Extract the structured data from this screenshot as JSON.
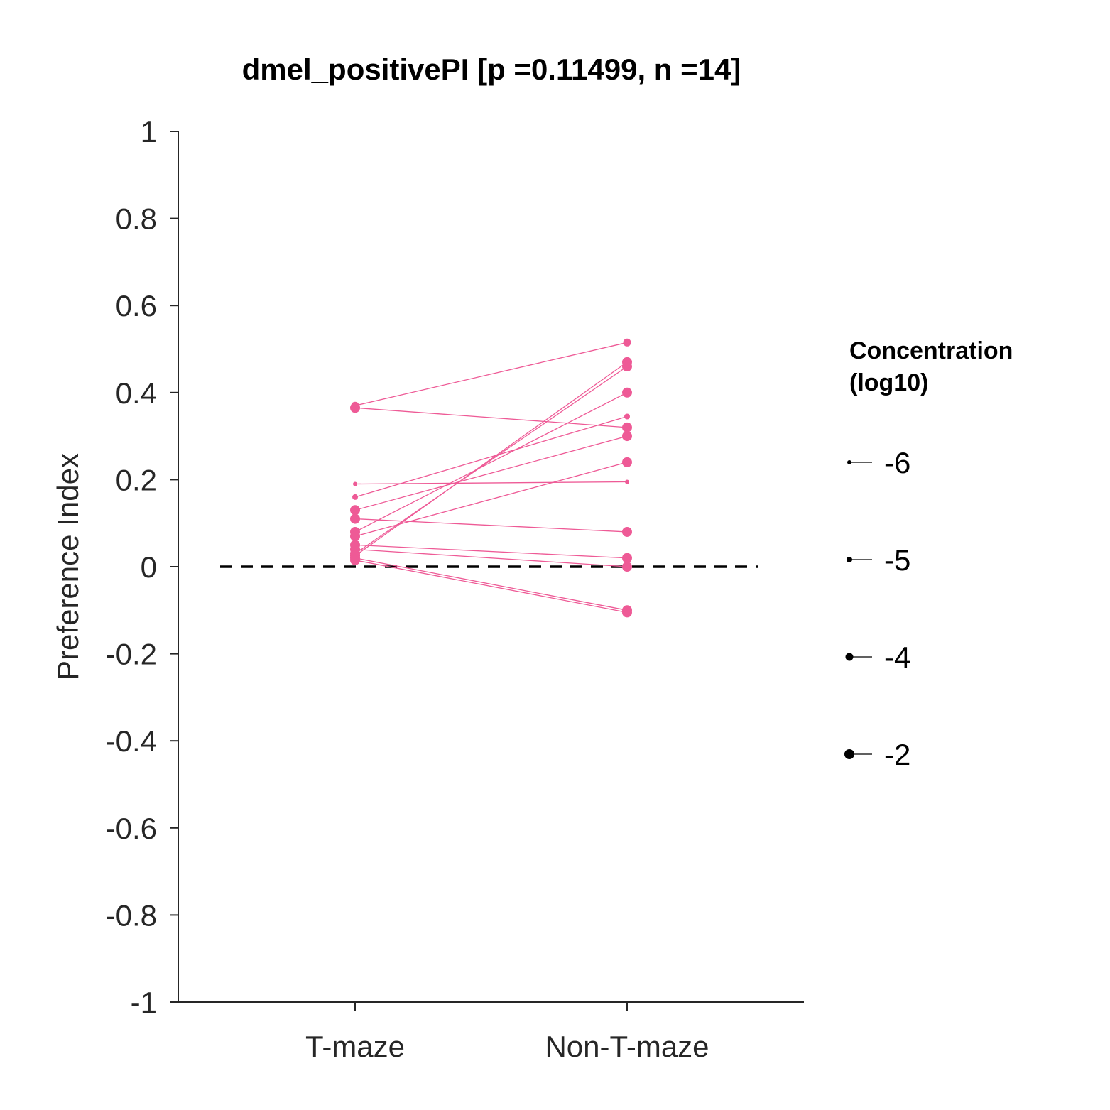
{
  "chart_data": {
    "type": "line",
    "title": "dmel_positivePI [p =0.11499, n =14]",
    "ylabel": "Preference Index",
    "xlabel": "",
    "categories": [
      "T-maze",
      "Non-T-maze"
    ],
    "ylim": [
      -1,
      1
    ],
    "yticks": [
      "1",
      "0.8",
      "0.6",
      "0.4",
      "0.2",
      "0",
      "-0.2",
      "-0.4",
      "-0.6",
      "-0.8",
      "-1"
    ],
    "ytick_values": [
      1,
      0.8,
      0.6,
      0.4,
      0.2,
      0,
      -0.2,
      -0.4,
      -0.6,
      -0.8,
      -1
    ],
    "reference_line": 0,
    "series_color": "#ee5a96",
    "axis_color": "#262626",
    "legend": {
      "title_line1": "Concentration",
      "title_line2": "(log10)",
      "placement": "right",
      "items": [
        {
          "label": "-6",
          "concentration": -6
        },
        {
          "label": "-5",
          "concentration": -5
        },
        {
          "label": "-4",
          "concentration": -4
        },
        {
          "label": "-2",
          "concentration": -2
        }
      ]
    },
    "pairs": [
      {
        "tmaze": 0.37,
        "nontmaze": 0.515,
        "concentration": -4
      },
      {
        "tmaze": 0.365,
        "nontmaze": 0.32,
        "concentration": -2
      },
      {
        "tmaze": 0.19,
        "nontmaze": 0.195,
        "concentration": -6
      },
      {
        "tmaze": 0.16,
        "nontmaze": 0.345,
        "concentration": -5
      },
      {
        "tmaze": 0.13,
        "nontmaze": 0.3,
        "concentration": -2
      },
      {
        "tmaze": 0.11,
        "nontmaze": 0.08,
        "concentration": -2
      },
      {
        "tmaze": 0.08,
        "nontmaze": 0.4,
        "concentration": -2
      },
      {
        "tmaze": 0.07,
        "nontmaze": 0.24,
        "concentration": -2
      },
      {
        "tmaze": 0.05,
        "nontmaze": 0.02,
        "concentration": -2
      },
      {
        "tmaze": 0.04,
        "nontmaze": 0.0,
        "concentration": -2
      },
      {
        "tmaze": 0.03,
        "nontmaze": 0.46,
        "concentration": -2
      },
      {
        "tmaze": 0.025,
        "nontmaze": 0.47,
        "concentration": -2
      },
      {
        "tmaze": 0.02,
        "nontmaze": -0.1,
        "concentration": -2
      },
      {
        "tmaze": 0.015,
        "nontmaze": -0.105,
        "concentration": -2
      }
    ]
  }
}
